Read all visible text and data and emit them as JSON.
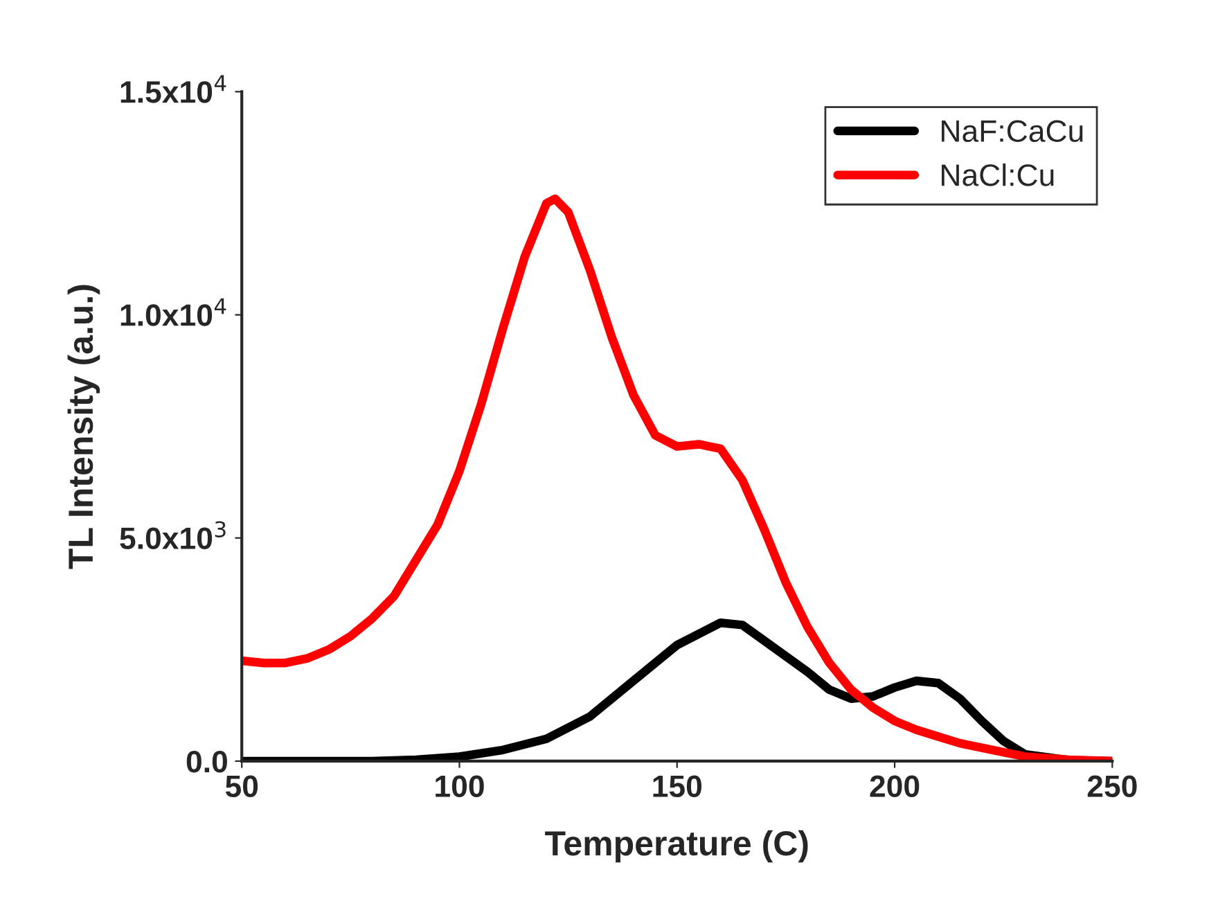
{
  "chart_data": {
    "type": "line",
    "xlabel": "Temperature (C)",
    "ylabel": "TL Intensity (a.u.)",
    "xlim": [
      50,
      250
    ],
    "xticks": [
      50,
      100,
      150,
      200,
      250
    ],
    "ylim": [
      0,
      15000
    ],
    "yticks": [
      {
        "value": 0,
        "label": "0.0"
      },
      {
        "value": 5000,
        "label": "5.0x10$^{3}$"
      },
      {
        "value": 10000,
        "label": "1.0x10$^{4}$"
      },
      {
        "value": 15000,
        "label": "1.5x10$^{4}$"
      }
    ],
    "grid": false,
    "legend": "top right",
    "marker": "none",
    "line_style": "solid",
    "series": [
      {
        "name": "NaF:CaCu",
        "color": "#000000",
        "x": [
          50,
          80,
          90,
          100,
          110,
          120,
          130,
          140,
          150,
          160,
          165,
          170,
          180,
          185,
          190,
          195,
          200,
          205,
          210,
          215,
          220,
          225,
          230,
          240,
          250
        ],
        "values": [
          0,
          0,
          30,
          100,
          250,
          500,
          1000,
          1800,
          2600,
          3100,
          3050,
          2700,
          2000,
          1600,
          1400,
          1450,
          1650,
          1800,
          1750,
          1400,
          900,
          450,
          150,
          20,
          0
        ]
      },
      {
        "name": "NaCl:Cu",
        "color": "#ff0000",
        "x": [
          50,
          55,
          60,
          65,
          70,
          75,
          80,
          85,
          90,
          95,
          100,
          105,
          110,
          115,
          120,
          122,
          125,
          130,
          135,
          140,
          145,
          150,
          155,
          160,
          165,
          170,
          175,
          180,
          185,
          190,
          195,
          200,
          205,
          210,
          215,
          220,
          225,
          230,
          240,
          250
        ],
        "values": [
          2250,
          2200,
          2200,
          2300,
          2500,
          2800,
          3200,
          3700,
          4500,
          5300,
          6500,
          8000,
          9700,
          11300,
          12500,
          12600,
          12300,
          11000,
          9500,
          8200,
          7300,
          7050,
          7100,
          7000,
          6300,
          5200,
          4000,
          3000,
          2200,
          1600,
          1200,
          900,
          700,
          550,
          400,
          300,
          200,
          100,
          30,
          0
        ]
      }
    ]
  }
}
